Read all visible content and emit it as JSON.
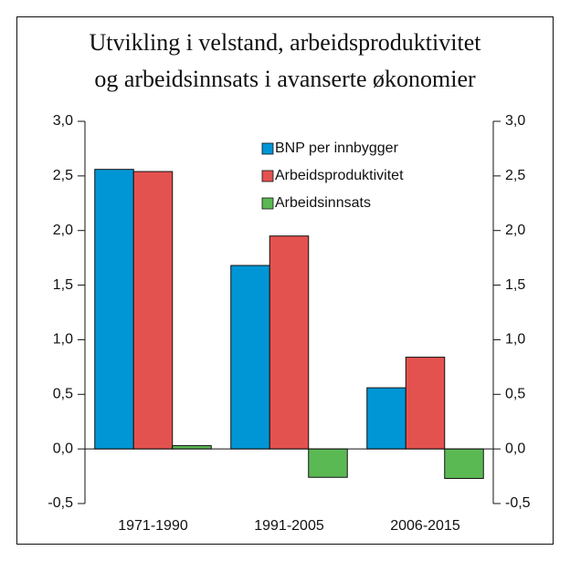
{
  "chart_data": {
    "type": "bar",
    "title": [
      "Utvikling i velstand, arbeidsproduktivitet",
      "og arbeidsinnsats i avanserte økonomier"
    ],
    "categories": [
      "1971-1990",
      "1991-2005",
      "2006-2015"
    ],
    "series": [
      {
        "name": "BNP per innbygger",
        "color": "#0096d6",
        "values": [
          2.56,
          1.68,
          0.56
        ]
      },
      {
        "name": "Arbeidsproduktivitet",
        "color": "#e4524f",
        "values": [
          2.54,
          1.95,
          0.84
        ]
      },
      {
        "name": "Arbeidsinnsats",
        "color": "#5bb954",
        "values": [
          0.03,
          -0.26,
          -0.27
        ]
      }
    ],
    "ylim": [
      -0.5,
      3
    ],
    "yticks": [
      {
        "value": -0.5,
        "label": "-0,5"
      },
      {
        "value": 0,
        "label": "0,0"
      },
      {
        "value": 0.5,
        "label": "0,5"
      },
      {
        "value": 1,
        "label": "1,0"
      },
      {
        "value": 1.5,
        "label": "1,5"
      },
      {
        "value": 2,
        "label": "2,0"
      },
      {
        "value": 2.5,
        "label": "2,5"
      },
      {
        "value": 3,
        "label": "3,0"
      }
    ],
    "y2lim": [
      -0.5,
      3
    ],
    "y2ticks": [
      {
        "value": -0.5,
        "label": "-0,5"
      },
      {
        "value": 0,
        "label": "0,0"
      },
      {
        "value": 0.5,
        "label": "0,5"
      },
      {
        "value": 1,
        "label": "1,0"
      },
      {
        "value": 1.5,
        "label": "1,5"
      },
      {
        "value": 2,
        "label": "2,0"
      },
      {
        "value": 2.5,
        "label": "2,5"
      },
      {
        "value": 3,
        "label": "3,0"
      }
    ],
    "grid": false,
    "legend": "top-right"
  }
}
